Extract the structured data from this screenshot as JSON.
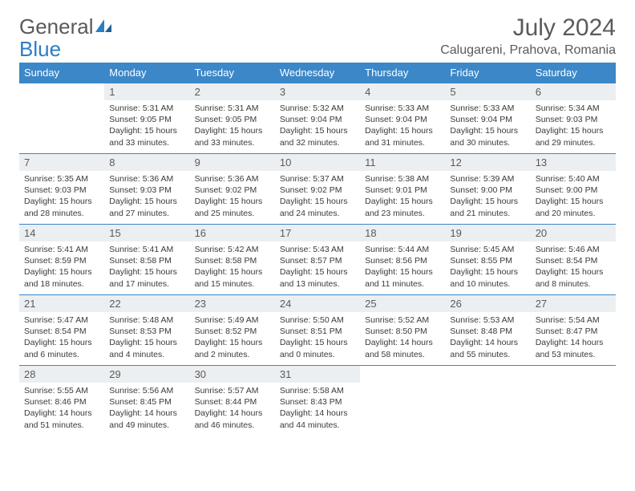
{
  "logo": {
    "text1": "General",
    "text2": "Blue"
  },
  "title": "July 2024",
  "location": "Calugareni, Prahova, Romania",
  "colors": {
    "header_bg": "#3b87c8",
    "header_fg": "#ffffff",
    "daynum_bg": "#eceff1",
    "text": "#5a5a5a",
    "border": "#3b87c8"
  },
  "day_headers": [
    "Sunday",
    "Monday",
    "Tuesday",
    "Wednesday",
    "Thursday",
    "Friday",
    "Saturday"
  ],
  "weeks": [
    [
      null,
      {
        "n": "1",
        "sr": "5:31 AM",
        "ss": "9:05 PM",
        "dl": "15 hours and 33 minutes."
      },
      {
        "n": "2",
        "sr": "5:31 AM",
        "ss": "9:05 PM",
        "dl": "15 hours and 33 minutes."
      },
      {
        "n": "3",
        "sr": "5:32 AM",
        "ss": "9:04 PM",
        "dl": "15 hours and 32 minutes."
      },
      {
        "n": "4",
        "sr": "5:33 AM",
        "ss": "9:04 PM",
        "dl": "15 hours and 31 minutes."
      },
      {
        "n": "5",
        "sr": "5:33 AM",
        "ss": "9:04 PM",
        "dl": "15 hours and 30 minutes."
      },
      {
        "n": "6",
        "sr": "5:34 AM",
        "ss": "9:03 PM",
        "dl": "15 hours and 29 minutes."
      }
    ],
    [
      {
        "n": "7",
        "sr": "5:35 AM",
        "ss": "9:03 PM",
        "dl": "15 hours and 28 minutes."
      },
      {
        "n": "8",
        "sr": "5:36 AM",
        "ss": "9:03 PM",
        "dl": "15 hours and 27 minutes."
      },
      {
        "n": "9",
        "sr": "5:36 AM",
        "ss": "9:02 PM",
        "dl": "15 hours and 25 minutes."
      },
      {
        "n": "10",
        "sr": "5:37 AM",
        "ss": "9:02 PM",
        "dl": "15 hours and 24 minutes."
      },
      {
        "n": "11",
        "sr": "5:38 AM",
        "ss": "9:01 PM",
        "dl": "15 hours and 23 minutes."
      },
      {
        "n": "12",
        "sr": "5:39 AM",
        "ss": "9:00 PM",
        "dl": "15 hours and 21 minutes."
      },
      {
        "n": "13",
        "sr": "5:40 AM",
        "ss": "9:00 PM",
        "dl": "15 hours and 20 minutes."
      }
    ],
    [
      {
        "n": "14",
        "sr": "5:41 AM",
        "ss": "8:59 PM",
        "dl": "15 hours and 18 minutes."
      },
      {
        "n": "15",
        "sr": "5:41 AM",
        "ss": "8:58 PM",
        "dl": "15 hours and 17 minutes."
      },
      {
        "n": "16",
        "sr": "5:42 AM",
        "ss": "8:58 PM",
        "dl": "15 hours and 15 minutes."
      },
      {
        "n": "17",
        "sr": "5:43 AM",
        "ss": "8:57 PM",
        "dl": "15 hours and 13 minutes."
      },
      {
        "n": "18",
        "sr": "5:44 AM",
        "ss": "8:56 PM",
        "dl": "15 hours and 11 minutes."
      },
      {
        "n": "19",
        "sr": "5:45 AM",
        "ss": "8:55 PM",
        "dl": "15 hours and 10 minutes."
      },
      {
        "n": "20",
        "sr": "5:46 AM",
        "ss": "8:54 PM",
        "dl": "15 hours and 8 minutes."
      }
    ],
    [
      {
        "n": "21",
        "sr": "5:47 AM",
        "ss": "8:54 PM",
        "dl": "15 hours and 6 minutes."
      },
      {
        "n": "22",
        "sr": "5:48 AM",
        "ss": "8:53 PM",
        "dl": "15 hours and 4 minutes."
      },
      {
        "n": "23",
        "sr": "5:49 AM",
        "ss": "8:52 PM",
        "dl": "15 hours and 2 minutes."
      },
      {
        "n": "24",
        "sr": "5:50 AM",
        "ss": "8:51 PM",
        "dl": "15 hours and 0 minutes."
      },
      {
        "n": "25",
        "sr": "5:52 AM",
        "ss": "8:50 PM",
        "dl": "14 hours and 58 minutes."
      },
      {
        "n": "26",
        "sr": "5:53 AM",
        "ss": "8:48 PM",
        "dl": "14 hours and 55 minutes."
      },
      {
        "n": "27",
        "sr": "5:54 AM",
        "ss": "8:47 PM",
        "dl": "14 hours and 53 minutes."
      }
    ],
    [
      {
        "n": "28",
        "sr": "5:55 AM",
        "ss": "8:46 PM",
        "dl": "14 hours and 51 minutes."
      },
      {
        "n": "29",
        "sr": "5:56 AM",
        "ss": "8:45 PM",
        "dl": "14 hours and 49 minutes."
      },
      {
        "n": "30",
        "sr": "5:57 AM",
        "ss": "8:44 PM",
        "dl": "14 hours and 46 minutes."
      },
      {
        "n": "31",
        "sr": "5:58 AM",
        "ss": "8:43 PM",
        "dl": "14 hours and 44 minutes."
      },
      null,
      null,
      null
    ]
  ],
  "labels": {
    "sunrise": "Sunrise:",
    "sunset": "Sunset:",
    "daylight": "Daylight:"
  }
}
